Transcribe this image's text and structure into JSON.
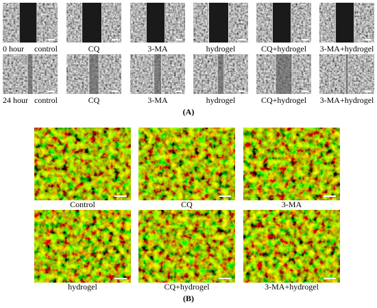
{
  "panel_a": {
    "rows": [
      {
        "time": "0 hour",
        "labels": [
          "control",
          "CQ",
          "3-MA",
          "hydrogel",
          "CQ+hydrogel",
          "3-MA+hydrogel"
        ]
      },
      {
        "time": "24 hour",
        "labels": [
          "control",
          "CQ",
          "3-MA",
          "hydrogel",
          "CQ+hydrogel",
          "3-MA+hydrogel"
        ]
      }
    ],
    "caption": "(A)"
  },
  "panel_b": {
    "labels": [
      "Control",
      "CQ",
      "3-MA",
      "hydrogel",
      "CQ+hydrogel",
      "3-MA+hydrogel"
    ],
    "caption": "(B)"
  }
}
